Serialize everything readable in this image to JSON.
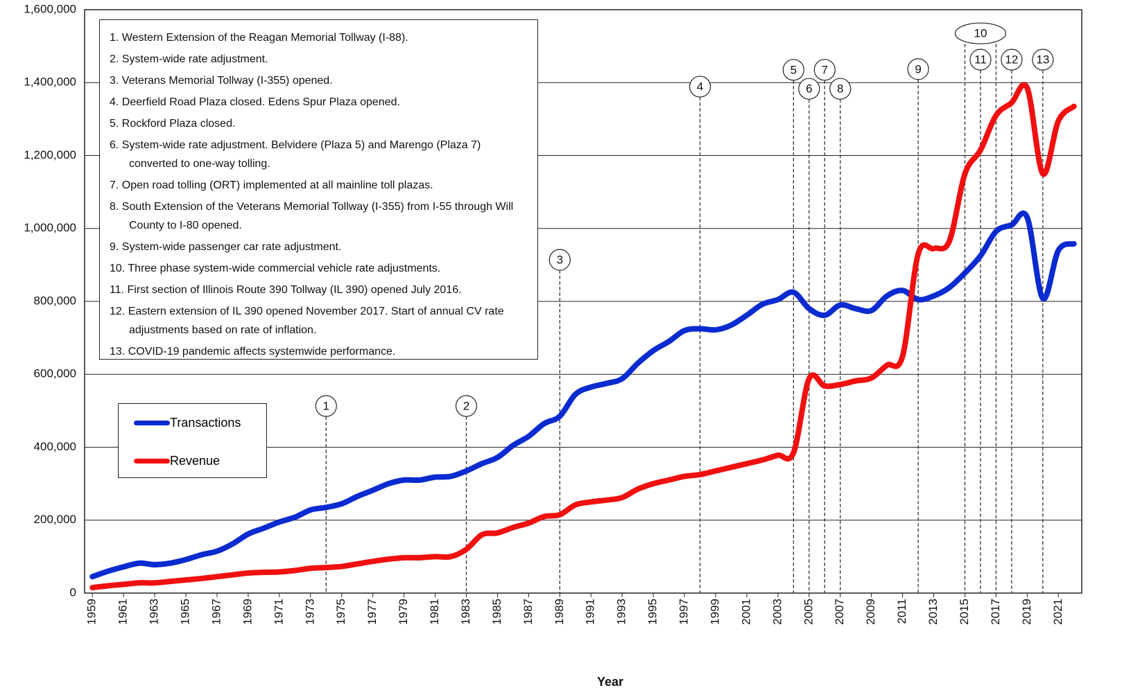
{
  "chart_data": {
    "type": "line",
    "x_label": "Year",
    "x": [
      1959,
      1960,
      1961,
      1962,
      1963,
      1964,
      1965,
      1966,
      1967,
      1968,
      1969,
      1970,
      1971,
      1972,
      1973,
      1974,
      1975,
      1976,
      1977,
      1978,
      1979,
      1980,
      1981,
      1982,
      1983,
      1984,
      1985,
      1986,
      1987,
      1988,
      1989,
      1990,
      1991,
      1992,
      1993,
      1994,
      1995,
      1996,
      1997,
      1998,
      1999,
      2000,
      2001,
      2002,
      2003,
      2004,
      2005,
      2006,
      2007,
      2008,
      2009,
      2010,
      2011,
      2012,
      2013,
      2014,
      2015,
      2016,
      2017,
      2018,
      2019,
      2020,
      2021,
      2022
    ],
    "xlim": [
      1958.5,
      2022.5
    ],
    "xticks": [
      1959,
      1961,
      1963,
      1965,
      1967,
      1969,
      1971,
      1973,
      1975,
      1977,
      1979,
      1981,
      1983,
      1985,
      1987,
      1989,
      1991,
      1993,
      1995,
      1997,
      1999,
      2001,
      2003,
      2005,
      2007,
      2009,
      2011,
      2013,
      2015,
      2017,
      2019,
      2021
    ],
    "ylim": [
      0,
      1600000
    ],
    "yticks": [
      {
        "value": 0,
        "label": "0"
      },
      {
        "value": 200000,
        "label": "200,000"
      },
      {
        "value": 400000,
        "label": "400,000"
      },
      {
        "value": 600000,
        "label": "600,000"
      },
      {
        "value": 800000,
        "label": "800,000"
      },
      {
        "value": 1000000,
        "label": "1,000,000"
      },
      {
        "value": 1200000,
        "label": "1,200,000"
      },
      {
        "value": 1400000,
        "label": "1,400,000"
      },
      {
        "value": 1600000,
        "label": "1,600,000"
      }
    ],
    "grid": true,
    "legend": "left",
    "series": [
      {
        "name": "Transactions",
        "color": "#0a2bd0",
        "values": [
          45000,
          60000,
          72000,
          82000,
          78000,
          82000,
          92000,
          105000,
          115000,
          135000,
          162000,
          178000,
          195000,
          208000,
          228000,
          235000,
          245000,
          265000,
          282000,
          300000,
          310000,
          310000,
          318000,
          320000,
          335000,
          355000,
          372000,
          405000,
          430000,
          465000,
          485000,
          545000,
          565000,
          575000,
          588000,
          630000,
          665000,
          690000,
          720000,
          725000,
          722000,
          735000,
          762000,
          792000,
          805000,
          825000,
          780000,
          762000,
          790000,
          780000,
          775000,
          815000,
          830000,
          805000,
          815000,
          838000,
          878000,
          925000,
          992000,
          1010000,
          1030000,
          808000,
          940000,
          958000
        ]
      },
      {
        "name": "Revenue",
        "color": "#f01010",
        "values": [
          15000,
          20000,
          24000,
          28000,
          28000,
          32000,
          36000,
          40000,
          45000,
          50000,
          55000,
          57000,
          58000,
          62000,
          68000,
          70000,
          73000,
          80000,
          87000,
          93000,
          97000,
          97000,
          100000,
          100000,
          120000,
          160000,
          165000,
          180000,
          192000,
          210000,
          215000,
          242000,
          250000,
          255000,
          262000,
          285000,
          300000,
          310000,
          320000,
          325000,
          335000,
          345000,
          355000,
          365000,
          378000,
          385000,
          588000,
          568000,
          572000,
          582000,
          590000,
          625000,
          650000,
          930000,
          945000,
          965000,
          1150000,
          1215000,
          1310000,
          1345000,
          1385000,
          1150000,
          1295000,
          1335000
        ]
      }
    ],
    "annotations": [
      {
        "label": "1",
        "x": [
          1974
        ],
        "y": 513000
      },
      {
        "label": "2",
        "x": [
          1983
        ],
        "y": 513000
      },
      {
        "label": "3",
        "x": [
          1989
        ],
        "y": 914000
      },
      {
        "label": "4",
        "x": [
          1998
        ],
        "y": 1389000
      },
      {
        "label": "5",
        "x": [
          2004
        ],
        "y": 1435000
      },
      {
        "label": "6",
        "x": [
          2005
        ],
        "y": 1383000
      },
      {
        "label": "7",
        "x": [
          2006
        ],
        "y": 1435000
      },
      {
        "label": "8",
        "x": [
          2007
        ],
        "y": 1383000
      },
      {
        "label": "9",
        "x": [
          2012
        ],
        "y": 1437000
      },
      {
        "label": "10",
        "x": [
          2015,
          2017
        ],
        "y": 1535000
      },
      {
        "label": "11",
        "x": [
          2016
        ],
        "y": 1463000
      },
      {
        "label": "12",
        "x": [
          2018
        ],
        "y": 1463000
      },
      {
        "label": "13",
        "x": [
          2020
        ],
        "y": 1463000
      }
    ],
    "notes": [
      "1. Western Extension of the Reagan Memorial Tollway (I-88).",
      "2. System-wide rate adjustment.",
      "3. Veterans Memorial Tollway (I-355) opened.",
      "4. Deerfield Road Plaza closed. Edens Spur Plaza opened.",
      "5. Rockford Plaza closed.",
      "6. System-wide rate adjustment. Belvidere (Plaza 5) and Marengo (Plaza 7) converted to one-way tolling.",
      "7. Open road tolling (ORT) implemented at all mainline toll plazas.",
      "8. South Extension of the Veterans Memorial Tollway (I-355) from I-55 through Will County to I-80 opened.",
      "9. System-wide passenger car rate adjustment.",
      "10. Three phase system-wide commercial vehicle rate adjustments.",
      "11. First section of Illinois Route 390 Tollway (IL 390) opened July 2016.",
      "12. Eastern extension of IL 390 opened November 2017. Start of annual CV rate adjustments based on rate of inflation.",
      "13. COVID-19 pandemic affects systemwide performance."
    ]
  }
}
